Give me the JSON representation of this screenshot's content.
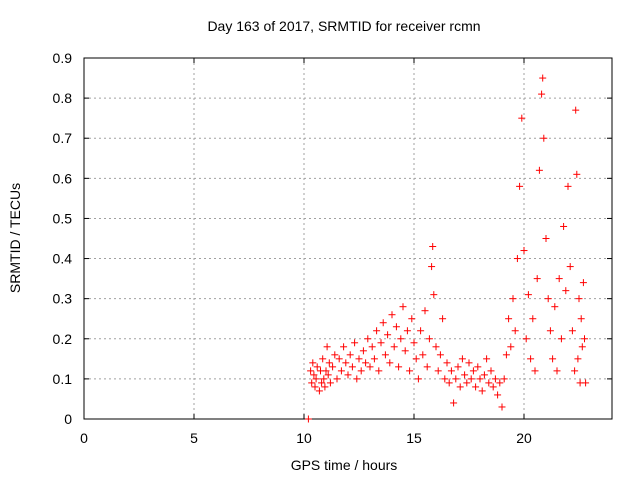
{
  "chart_data": {
    "type": "scatter",
    "title": "Day 163 of 2017, SRMTID for receiver rcmn",
    "xlabel": "GPS time / hours",
    "ylabel": "SRMTID / TECUs",
    "xlim": [
      0,
      24
    ],
    "ylim": [
      0,
      0.9
    ],
    "x_ticks": [
      "0",
      "5",
      "10",
      "15",
      "20"
    ],
    "y_ticks": [
      "0",
      "0.1",
      "0.2",
      "0.3",
      "0.4",
      "0.5",
      "0.6",
      "0.7",
      "0.8",
      "0.9"
    ],
    "grid": true,
    "marker": "plus",
    "color": "#ff0000",
    "series": [
      {
        "points": [
          [
            10.2,
            0.0
          ],
          [
            10.3,
            0.12
          ],
          [
            10.35,
            0.09
          ],
          [
            10.4,
            0.14
          ],
          [
            10.45,
            0.11
          ],
          [
            10.5,
            0.08
          ],
          [
            10.55,
            0.1
          ],
          [
            10.6,
            0.13
          ],
          [
            10.7,
            0.07
          ],
          [
            10.75,
            0.12
          ],
          [
            10.8,
            0.09
          ],
          [
            10.85,
            0.15
          ],
          [
            10.9,
            0.1
          ],
          [
            10.95,
            0.08
          ],
          [
            11.0,
            0.12
          ],
          [
            11.05,
            0.18
          ],
          [
            11.1,
            0.11
          ],
          [
            11.15,
            0.14
          ],
          [
            11.2,
            0.09
          ],
          [
            11.3,
            0.13
          ],
          [
            11.4,
            0.16
          ],
          [
            11.5,
            0.1
          ],
          [
            11.6,
            0.15
          ],
          [
            11.7,
            0.12
          ],
          [
            11.8,
            0.18
          ],
          [
            11.9,
            0.14
          ],
          [
            12.0,
            0.11
          ],
          [
            12.1,
            0.16
          ],
          [
            12.2,
            0.13
          ],
          [
            12.3,
            0.19
          ],
          [
            12.4,
            0.1
          ],
          [
            12.5,
            0.15
          ],
          [
            12.6,
            0.12
          ],
          [
            12.7,
            0.17
          ],
          [
            12.8,
            0.14
          ],
          [
            12.9,
            0.2
          ],
          [
            13.0,
            0.13
          ],
          [
            13.1,
            0.18
          ],
          [
            13.2,
            0.15
          ],
          [
            13.3,
            0.22
          ],
          [
            13.4,
            0.12
          ],
          [
            13.5,
            0.19
          ],
          [
            13.6,
            0.24
          ],
          [
            13.7,
            0.16
          ],
          [
            13.8,
            0.21
          ],
          [
            13.9,
            0.14
          ],
          [
            14.0,
            0.26
          ],
          [
            14.1,
            0.18
          ],
          [
            14.2,
            0.23
          ],
          [
            14.3,
            0.13
          ],
          [
            14.4,
            0.2
          ],
          [
            14.5,
            0.28
          ],
          [
            14.6,
            0.17
          ],
          [
            14.7,
            0.22
          ],
          [
            14.8,
            0.12
          ],
          [
            14.9,
            0.25
          ],
          [
            15.0,
            0.19
          ],
          [
            15.1,
            0.15
          ],
          [
            15.2,
            0.1
          ],
          [
            15.3,
            0.22
          ],
          [
            15.4,
            0.16
          ],
          [
            15.5,
            0.27
          ],
          [
            15.6,
            0.13
          ],
          [
            15.7,
            0.2
          ],
          [
            15.8,
            0.38
          ],
          [
            15.85,
            0.43
          ],
          [
            15.9,
            0.31
          ],
          [
            16.0,
            0.18
          ],
          [
            16.1,
            0.12
          ],
          [
            16.2,
            0.16
          ],
          [
            16.3,
            0.25
          ],
          [
            16.4,
            0.1
          ],
          [
            16.5,
            0.14
          ],
          [
            16.6,
            0.09
          ],
          [
            16.7,
            0.12
          ],
          [
            16.8,
            0.04
          ],
          [
            16.9,
            0.1
          ],
          [
            17.0,
            0.13
          ],
          [
            17.1,
            0.08
          ],
          [
            17.2,
            0.15
          ],
          [
            17.3,
            0.11
          ],
          [
            17.4,
            0.09
          ],
          [
            17.5,
            0.14
          ],
          [
            17.6,
            0.1
          ],
          [
            17.7,
            0.12
          ],
          [
            17.8,
            0.08
          ],
          [
            17.9,
            0.13
          ],
          [
            18.0,
            0.1
          ],
          [
            18.1,
            0.07
          ],
          [
            18.2,
            0.11
          ],
          [
            18.3,
            0.15
          ],
          [
            18.4,
            0.09
          ],
          [
            18.5,
            0.12
          ],
          [
            18.6,
            0.08
          ],
          [
            18.7,
            0.1
          ],
          [
            18.8,
            0.06
          ],
          [
            18.9,
            0.09
          ],
          [
            19.0,
            0.03
          ],
          [
            19.1,
            0.1
          ],
          [
            19.2,
            0.16
          ],
          [
            19.3,
            0.25
          ],
          [
            19.4,
            0.18
          ],
          [
            19.5,
            0.3
          ],
          [
            19.6,
            0.22
          ],
          [
            19.7,
            0.4
          ],
          [
            19.8,
            0.58
          ],
          [
            19.9,
            0.75
          ],
          [
            20.0,
            0.42
          ],
          [
            20.1,
            0.2
          ],
          [
            20.2,
            0.31
          ],
          [
            20.3,
            0.15
          ],
          [
            20.4,
            0.25
          ],
          [
            20.5,
            0.12
          ],
          [
            20.6,
            0.35
          ],
          [
            20.7,
            0.62
          ],
          [
            20.8,
            0.81
          ],
          [
            20.85,
            0.85
          ],
          [
            20.9,
            0.7
          ],
          [
            21.0,
            0.45
          ],
          [
            21.1,
            0.3
          ],
          [
            21.2,
            0.22
          ],
          [
            21.3,
            0.15
          ],
          [
            21.4,
            0.28
          ],
          [
            21.5,
            0.12
          ],
          [
            21.6,
            0.35
          ],
          [
            21.7,
            0.2
          ],
          [
            21.8,
            0.48
          ],
          [
            21.9,
            0.32
          ],
          [
            22.0,
            0.58
          ],
          [
            22.1,
            0.38
          ],
          [
            22.2,
            0.22
          ],
          [
            22.3,
            0.12
          ],
          [
            22.35,
            0.77
          ],
          [
            22.4,
            0.61
          ],
          [
            22.45,
            0.15
          ],
          [
            22.5,
            0.3
          ],
          [
            22.55,
            0.09
          ],
          [
            22.6,
            0.25
          ],
          [
            22.65,
            0.18
          ],
          [
            22.7,
            0.34
          ],
          [
            22.75,
            0.2
          ],
          [
            22.8,
            0.09
          ]
        ]
      }
    ]
  }
}
